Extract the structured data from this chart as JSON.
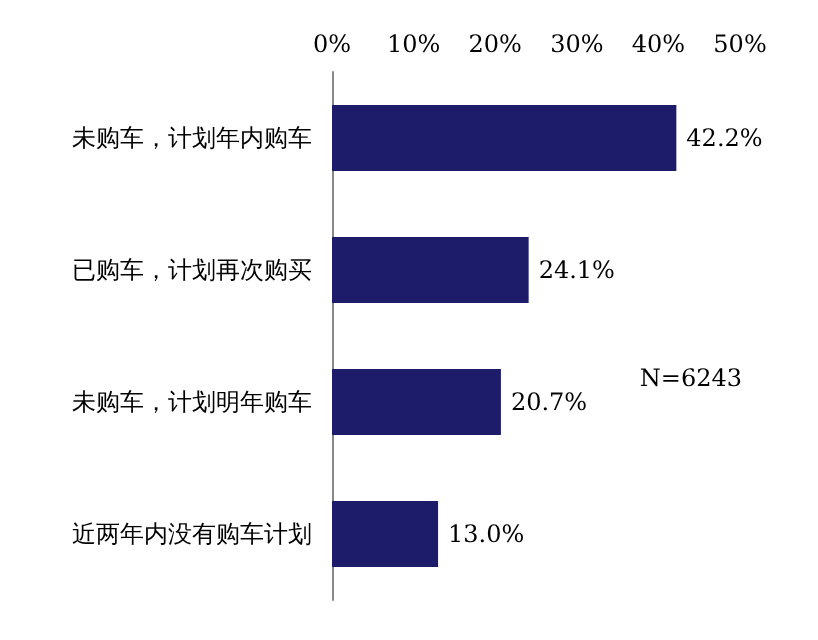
{
  "chart_data": {
    "type": "bar",
    "orientation": "horizontal",
    "categories": [
      "未购车，计划年内购车",
      "已购车，计划再次购买",
      "未购车，计划明年购车",
      "近两年内没有购车计划"
    ],
    "values": [
      42.2,
      24.1,
      20.7,
      13.0
    ],
    "value_labels": [
      "42.2%",
      "24.1%",
      "20.7%",
      "13.0%"
    ],
    "color": "#1c1c6b",
    "xlim": [
      0,
      50
    ],
    "xticks": [
      {
        "value": 0,
        "label": "0%"
      },
      {
        "value": 10,
        "label": "10%"
      },
      {
        "value": 20,
        "label": "20%"
      },
      {
        "value": 30,
        "label": "30%"
      },
      {
        "value": 40,
        "label": "40%"
      },
      {
        "value": 50,
        "label": "50%"
      }
    ],
    "grid": false,
    "annotations": [
      "N=6243"
    ]
  }
}
